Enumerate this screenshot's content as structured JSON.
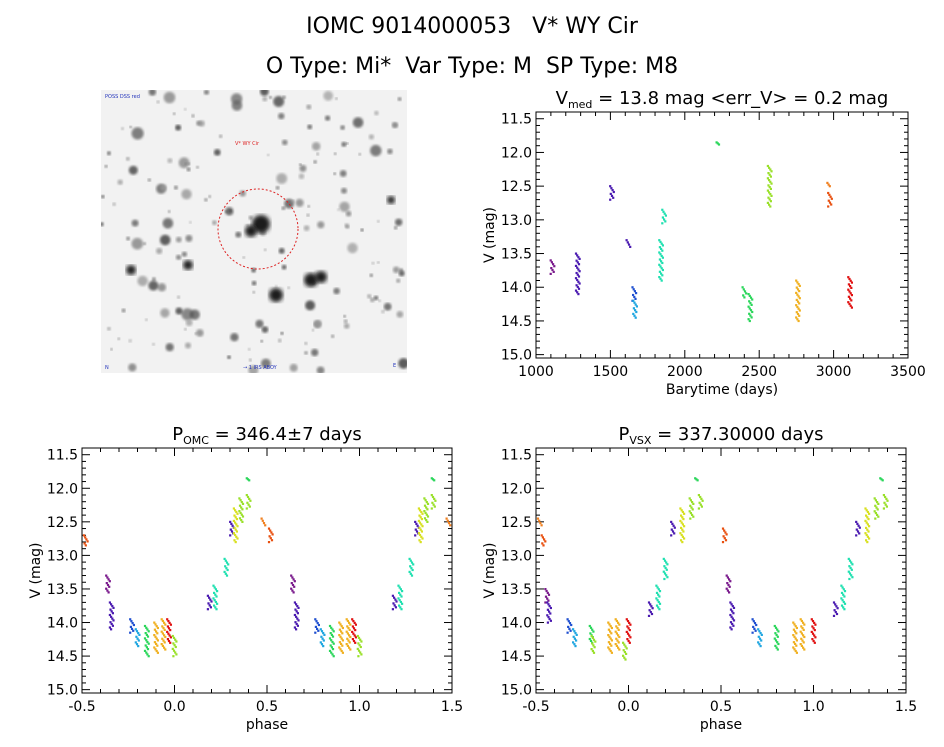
{
  "header": {
    "line1": "IOMC 9014000053   V* WY Cir",
    "line2": "O Type: Mi*  Var Type: M  SP Type: M8"
  },
  "finder": {
    "label_top_left": "POSS DSS red",
    "label_target": "V* WY Cir",
    "label_bottom_left": "N",
    "label_bottom_center": "→ 1 IRS ABOY",
    "label_bottom_right": "E"
  },
  "colors": {
    "axis": "#000000",
    "finder_circle": "#dd2222",
    "palette": [
      "#7a1a8c",
      "#4a1ab0",
      "#1f4fd0",
      "#1fa6e0",
      "#1fe0b0",
      "#2ad65a",
      "#9ae02a",
      "#d8e020",
      "#f0b020",
      "#f08020",
      "#e85010",
      "#e01010"
    ]
  },
  "chart_data": [
    {
      "type": "scatter",
      "title_main": "V",
      "title_sub": "med",
      "title_rest": " = 13.8 mag <err_V> = 0.2 mag",
      "xlabel": "Barytime (days)",
      "ylabel": "V (mag)",
      "xlim": [
        1000,
        3500
      ],
      "ylim": [
        15.05,
        11.4
      ],
      "y_inverted": true,
      "xticks": [
        "1000",
        "1500",
        "2000",
        "2500",
        "3000",
        "3500"
      ],
      "yticks": [
        "11.5",
        "12.0",
        "12.5",
        "13.0",
        "13.5",
        "14.0",
        "14.5",
        "15.0"
      ],
      "groups": [
        {
          "color_index": 0,
          "x": 1110,
          "y_min": 13.6,
          "y_max": 13.8
        },
        {
          "color_index": 1,
          "x": 1280,
          "y_min": 13.5,
          "y_max": 14.1
        },
        {
          "color_index": 1,
          "x": 1510,
          "y_min": 12.5,
          "y_max": 12.7
        },
        {
          "color_index": 1,
          "x": 1620,
          "y_min": 13.3,
          "y_max": 13.4
        },
        {
          "color_index": 2,
          "x": 1660,
          "y_min": 14.0,
          "y_max": 14.2
        },
        {
          "color_index": 3,
          "x": 1665,
          "y_min": 14.2,
          "y_max": 14.45
        },
        {
          "color_index": 4,
          "x": 1840,
          "y_min": 13.3,
          "y_max": 13.9
        },
        {
          "color_index": 4,
          "x": 1860,
          "y_min": 12.85,
          "y_max": 13.05
        },
        {
          "color_index": 5,
          "x": 2225,
          "y_min": 11.85,
          "y_max": 11.88
        },
        {
          "color_index": 5,
          "x": 2400,
          "y_min": 14.0,
          "y_max": 14.15
        },
        {
          "color_index": 5,
          "x": 2440,
          "y_min": 14.1,
          "y_max": 14.5
        },
        {
          "color_index": 6,
          "x": 2570,
          "y_min": 12.2,
          "y_max": 12.8
        },
        {
          "color_index": 8,
          "x": 2760,
          "y_min": 13.9,
          "y_max": 14.5
        },
        {
          "color_index": 9,
          "x": 2970,
          "y_min": 12.45,
          "y_max": 12.5
        },
        {
          "color_index": 10,
          "x": 2975,
          "y_min": 12.6,
          "y_max": 12.8
        },
        {
          "color_index": 11,
          "x": 3110,
          "y_min": 13.85,
          "y_max": 14.3
        }
      ]
    },
    {
      "type": "scatter",
      "title_main": "P",
      "title_sub": "OMC",
      "title_rest": " = 346.4±7 days",
      "xlabel": "phase",
      "ylabel": "V (mag)",
      "xlim": [
        -0.5,
        1.5
      ],
      "ylim": [
        15.05,
        11.4
      ],
      "y_inverted": true,
      "xticks": [
        "-0.5",
        "0.0",
        "0.5",
        "1.0",
        "1.5"
      ],
      "yticks": [
        "11.5",
        "12.0",
        "12.5",
        "13.0",
        "13.5",
        "14.0",
        "14.5",
        "15.0"
      ],
      "groups": [
        {
          "color_index": 10,
          "x": -0.48,
          "y_min": 12.7,
          "y_max": 12.85
        },
        {
          "color_index": 0,
          "x": -0.36,
          "y_min": 13.3,
          "y_max": 13.55
        },
        {
          "color_index": 1,
          "x": -0.34,
          "y_min": 13.7,
          "y_max": 14.1
        },
        {
          "color_index": 2,
          "x": -0.23,
          "y_min": 13.95,
          "y_max": 14.15
        },
        {
          "color_index": 3,
          "x": -0.2,
          "y_min": 14.1,
          "y_max": 14.35
        },
        {
          "color_index": 5,
          "x": -0.15,
          "y_min": 14.05,
          "y_max": 14.5
        },
        {
          "color_index": 8,
          "x": -0.1,
          "y_min": 14.0,
          "y_max": 14.45
        },
        {
          "color_index": 8,
          "x": -0.06,
          "y_min": 13.95,
          "y_max": 14.4
        },
        {
          "color_index": 11,
          "x": -0.03,
          "y_min": 13.95,
          "y_max": 14.3
        },
        {
          "color_index": 6,
          "x": 0.0,
          "y_min": 14.2,
          "y_max": 14.5
        },
        {
          "color_index": 1,
          "x": 0.19,
          "y_min": 13.6,
          "y_max": 13.8
        },
        {
          "color_index": 4,
          "x": 0.22,
          "y_min": 13.45,
          "y_max": 13.8
        },
        {
          "color_index": 4,
          "x": 0.28,
          "y_min": 13.05,
          "y_max": 13.3
        },
        {
          "color_index": 1,
          "x": 0.31,
          "y_min": 12.5,
          "y_max": 12.7
        },
        {
          "color_index": 7,
          "x": 0.33,
          "y_min": 12.3,
          "y_max": 12.8
        },
        {
          "color_index": 6,
          "x": 0.36,
          "y_min": 12.15,
          "y_max": 12.5
        },
        {
          "color_index": 5,
          "x": 0.4,
          "y_min": 11.85,
          "y_max": 11.88
        },
        {
          "color_index": 6,
          "x": 0.4,
          "y_min": 12.1,
          "y_max": 12.3
        },
        {
          "color_index": 9,
          "x": 0.48,
          "y_min": 12.45,
          "y_max": 12.55
        },
        {
          "color_index": 10,
          "x": 0.52,
          "y_min": 12.6,
          "y_max": 12.8
        },
        {
          "color_index": 0,
          "x": 0.64,
          "y_min": 13.3,
          "y_max": 13.55
        },
        {
          "color_index": 1,
          "x": 0.66,
          "y_min": 13.7,
          "y_max": 14.1
        },
        {
          "color_index": 2,
          "x": 0.77,
          "y_min": 13.95,
          "y_max": 14.15
        },
        {
          "color_index": 3,
          "x": 0.8,
          "y_min": 14.1,
          "y_max": 14.35
        },
        {
          "color_index": 5,
          "x": 0.85,
          "y_min": 14.05,
          "y_max": 14.5
        },
        {
          "color_index": 8,
          "x": 0.9,
          "y_min": 14.0,
          "y_max": 14.45
        },
        {
          "color_index": 8,
          "x": 0.94,
          "y_min": 13.95,
          "y_max": 14.4
        },
        {
          "color_index": 11,
          "x": 0.97,
          "y_min": 13.95,
          "y_max": 14.3
        },
        {
          "color_index": 6,
          "x": 1.0,
          "y_min": 14.2,
          "y_max": 14.5
        },
        {
          "color_index": 1,
          "x": 1.19,
          "y_min": 13.6,
          "y_max": 13.8
        },
        {
          "color_index": 4,
          "x": 1.22,
          "y_min": 13.45,
          "y_max": 13.8
        },
        {
          "color_index": 4,
          "x": 1.28,
          "y_min": 13.05,
          "y_max": 13.3
        },
        {
          "color_index": 1,
          "x": 1.31,
          "y_min": 12.5,
          "y_max": 12.7
        },
        {
          "color_index": 7,
          "x": 1.33,
          "y_min": 12.3,
          "y_max": 12.8
        },
        {
          "color_index": 6,
          "x": 1.36,
          "y_min": 12.15,
          "y_max": 12.5
        },
        {
          "color_index": 5,
          "x": 1.4,
          "y_min": 11.85,
          "y_max": 11.88
        },
        {
          "color_index": 6,
          "x": 1.4,
          "y_min": 12.1,
          "y_max": 12.3
        },
        {
          "color_index": 9,
          "x": 1.48,
          "y_min": 12.45,
          "y_max": 12.55
        }
      ]
    },
    {
      "type": "scatter",
      "title_main": "P",
      "title_sub": "VSX",
      "title_rest": " = 337.30000 days",
      "xlabel": "phase",
      "ylabel": "V (mag)",
      "xlim": [
        -0.5,
        1.5
      ],
      "ylim": [
        15.05,
        11.4
      ],
      "y_inverted": true,
      "xticks": [
        "-0.5",
        "0.0",
        "0.5",
        "1.0",
        "1.5"
      ],
      "yticks": [
        "11.5",
        "12.0",
        "12.5",
        "13.0",
        "13.5",
        "14.0",
        "14.5",
        "15.0"
      ],
      "groups": [
        {
          "color_index": 9,
          "x": -0.48,
          "y_min": 12.45,
          "y_max": 12.55
        },
        {
          "color_index": 10,
          "x": -0.46,
          "y_min": 12.7,
          "y_max": 12.85
        },
        {
          "color_index": 0,
          "x": -0.44,
          "y_min": 13.5,
          "y_max": 13.7
        },
        {
          "color_index": 1,
          "x": -0.43,
          "y_min": 13.7,
          "y_max": 14.0
        },
        {
          "color_index": 2,
          "x": -0.32,
          "y_min": 13.95,
          "y_max": 14.15
        },
        {
          "color_index": 3,
          "x": -0.29,
          "y_min": 14.1,
          "y_max": 14.35
        },
        {
          "color_index": 5,
          "x": -0.2,
          "y_min": 14.05,
          "y_max": 14.3
        },
        {
          "color_index": 6,
          "x": -0.19,
          "y_min": 14.2,
          "y_max": 14.45
        },
        {
          "color_index": 8,
          "x": -0.1,
          "y_min": 14.0,
          "y_max": 14.45
        },
        {
          "color_index": 8,
          "x": -0.06,
          "y_min": 13.95,
          "y_max": 14.4
        },
        {
          "color_index": 11,
          "x": 0.0,
          "y_min": 13.95,
          "y_max": 14.3
        },
        {
          "color_index": 6,
          "x": -0.02,
          "y_min": 14.3,
          "y_max": 14.55
        },
        {
          "color_index": 1,
          "x": 0.12,
          "y_min": 13.7,
          "y_max": 13.9
        },
        {
          "color_index": 4,
          "x": 0.16,
          "y_min": 13.45,
          "y_max": 13.8
        },
        {
          "color_index": 4,
          "x": 0.2,
          "y_min": 13.05,
          "y_max": 13.35
        },
        {
          "color_index": 1,
          "x": 0.24,
          "y_min": 12.5,
          "y_max": 12.7
        },
        {
          "color_index": 7,
          "x": 0.29,
          "y_min": 12.3,
          "y_max": 12.8
        },
        {
          "color_index": 6,
          "x": 0.34,
          "y_min": 12.15,
          "y_max": 12.45
        },
        {
          "color_index": 5,
          "x": 0.37,
          "y_min": 11.85,
          "y_max": 11.88
        },
        {
          "color_index": 6,
          "x": 0.39,
          "y_min": 12.1,
          "y_max": 12.3
        },
        {
          "color_index": 10,
          "x": 0.52,
          "y_min": 12.6,
          "y_max": 12.8
        },
        {
          "color_index": 0,
          "x": 0.54,
          "y_min": 13.3,
          "y_max": 13.55
        },
        {
          "color_index": 1,
          "x": 0.56,
          "y_min": 13.7,
          "y_max": 14.1
        },
        {
          "color_index": 2,
          "x": 0.68,
          "y_min": 13.95,
          "y_max": 14.15
        },
        {
          "color_index": 3,
          "x": 0.71,
          "y_min": 14.1,
          "y_max": 14.35
        },
        {
          "color_index": 5,
          "x": 0.8,
          "y_min": 14.05,
          "y_max": 14.4
        },
        {
          "color_index": 8,
          "x": 0.9,
          "y_min": 14.0,
          "y_max": 14.45
        },
        {
          "color_index": 8,
          "x": 0.94,
          "y_min": 13.95,
          "y_max": 14.4
        },
        {
          "color_index": 11,
          "x": 1.0,
          "y_min": 13.95,
          "y_max": 14.3
        },
        {
          "color_index": 1,
          "x": 1.12,
          "y_min": 13.7,
          "y_max": 13.9
        },
        {
          "color_index": 4,
          "x": 1.16,
          "y_min": 13.45,
          "y_max": 13.8
        },
        {
          "color_index": 4,
          "x": 1.2,
          "y_min": 13.05,
          "y_max": 13.35
        },
        {
          "color_index": 1,
          "x": 1.24,
          "y_min": 12.5,
          "y_max": 12.7
        },
        {
          "color_index": 7,
          "x": 1.29,
          "y_min": 12.3,
          "y_max": 12.8
        },
        {
          "color_index": 6,
          "x": 1.34,
          "y_min": 12.15,
          "y_max": 12.45
        },
        {
          "color_index": 5,
          "x": 1.37,
          "y_min": 11.85,
          "y_max": 11.88
        },
        {
          "color_index": 6,
          "x": 1.39,
          "y_min": 12.1,
          "y_max": 12.3
        }
      ]
    }
  ]
}
